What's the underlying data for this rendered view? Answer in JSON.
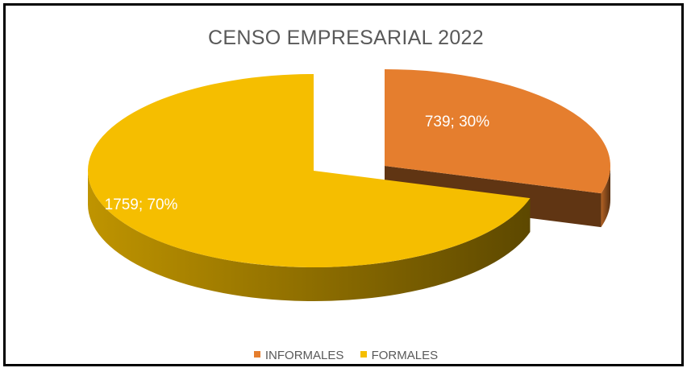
{
  "chart_data": {
    "type": "pie",
    "title": "CENSO EMPRESARIAL 2022",
    "categories": [
      "INFORMALES",
      "FORMALES"
    ],
    "values": [
      739,
      1759
    ],
    "percentages": [
      30,
      70
    ],
    "data_labels": [
      "739; 30%",
      "1759; 70%"
    ],
    "colors": [
      "#E57E2E",
      "#F5BE00"
    ],
    "style": "3d-exploded",
    "legend_position": "bottom"
  }
}
